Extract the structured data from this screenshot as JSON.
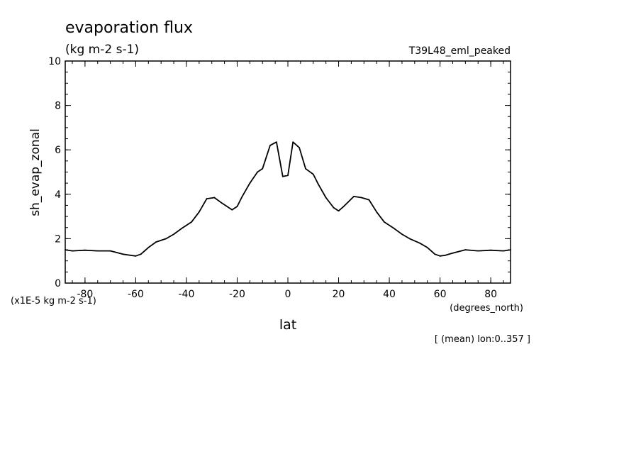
{
  "chart_data": {
    "type": "line",
    "title": "evaporation flux",
    "units": "(kg m-2 s-1)",
    "experiment": "T39L48_eml_peaked",
    "ylabel": "sh_evap_zonal",
    "yscale_note": "(x1E-5 kg m-2 s-1)",
    "xlabel": "lat",
    "xunits": "(degrees_north)",
    "footnote": "[ (mean) lon:0..357 ]",
    "xlim": [
      -87.8,
      87.8
    ],
    "ylim": [
      0,
      10
    ],
    "xticks": [
      -80,
      -60,
      -40,
      -20,
      0,
      20,
      40,
      60,
      80
    ],
    "xtick_labels": [
      "-80",
      "-60",
      "-40",
      "-20",
      "0",
      "20",
      "40",
      "60",
      "80"
    ],
    "yticks": [
      0,
      2,
      4,
      6,
      8,
      10
    ],
    "ytick_labels": [
      "0",
      "2",
      "4",
      "6",
      "8",
      "10"
    ],
    "grid": false,
    "series": [
      {
        "color": "#000000",
        "x": [
          -87.8,
          -85,
          -80,
          -75,
          -70,
          -65,
          -62,
          -60,
          -58,
          -55,
          -52,
          -48,
          -45,
          -42,
          -38,
          -35,
          -32,
          -29,
          -26,
          -22,
          -20,
          -18,
          -15,
          -12,
          -10,
          -7,
          -4.5,
          -2,
          0,
          2,
          4.5,
          7,
          10,
          12,
          15,
          18,
          20,
          22,
          26,
          29,
          32,
          35,
          38,
          42,
          45,
          48,
          52,
          55,
          58,
          60,
          62,
          65,
          70,
          75,
          80,
          85,
          87.8
        ],
        "y": [
          1.5,
          1.45,
          1.48,
          1.45,
          1.45,
          1.3,
          1.25,
          1.22,
          1.3,
          1.6,
          1.85,
          2.0,
          2.2,
          2.45,
          2.75,
          3.2,
          3.8,
          3.85,
          3.6,
          3.3,
          3.45,
          3.9,
          4.5,
          5.0,
          5.15,
          6.2,
          6.35,
          4.8,
          4.85,
          6.35,
          6.1,
          5.15,
          4.9,
          4.45,
          3.85,
          3.4,
          3.25,
          3.45,
          3.9,
          3.85,
          3.75,
          3.2,
          2.75,
          2.45,
          2.2,
          2.0,
          1.8,
          1.6,
          1.3,
          1.22,
          1.25,
          1.35,
          1.5,
          1.45,
          1.48,
          1.45,
          1.5
        ]
      }
    ]
  }
}
